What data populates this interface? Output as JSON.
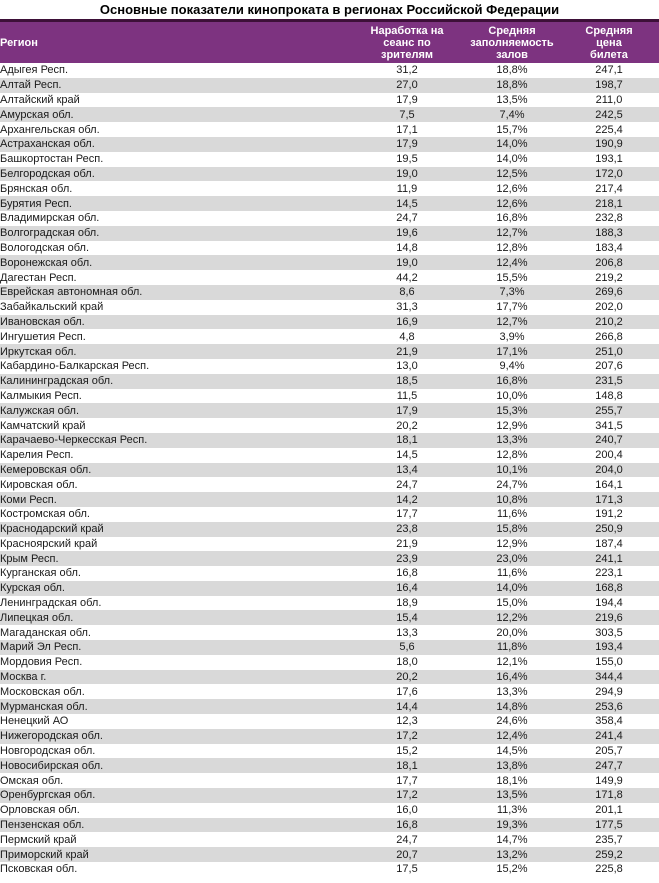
{
  "title": "Основные показатели кинопроката в регионах Российской Федерации",
  "colors": {
    "header_bg": "#7D3380",
    "header_top_border": "#3D1038",
    "stripe": "#D9D9D9",
    "header_text": "#FFFFFF",
    "body_text": "#1A1A1A"
  },
  "chart_data": {
    "type": "table",
    "title": "Основные показатели кинопроката в регионах Российской Федерации",
    "columns": [
      "Регион",
      "Наработка на\nсеанс по зрителям",
      "Средняя\nзаполняемость\nзалов",
      "Средняя цена\nбилета"
    ],
    "rows": [
      [
        "Адыгея Респ.",
        "31,2",
        "18,8%",
        "247,1"
      ],
      [
        "Алтай Респ.",
        "27,0",
        "18,8%",
        "198,7"
      ],
      [
        "Алтайский край",
        "17,9",
        "13,5%",
        "211,0"
      ],
      [
        "Амурская обл.",
        "7,5",
        "7,4%",
        "242,5"
      ],
      [
        "Архангельская обл.",
        "17,1",
        "15,7%",
        "225,4"
      ],
      [
        "Астраханская обл.",
        "17,9",
        "14,0%",
        "190,9"
      ],
      [
        "Башкортостан Респ.",
        "19,5",
        "14,0%",
        "193,1"
      ],
      [
        "Белгородская обл.",
        "19,0",
        "12,5%",
        "172,0"
      ],
      [
        "Брянская обл.",
        "11,9",
        "12,6%",
        "217,4"
      ],
      [
        "Бурятия Респ.",
        "14,5",
        "12,6%",
        "218,1"
      ],
      [
        "Владимирская обл.",
        "24,7",
        "16,8%",
        "232,8"
      ],
      [
        "Волгоградская обл.",
        "19,6",
        "12,7%",
        "188,3"
      ],
      [
        "Вологодская обл.",
        "14,8",
        "12,8%",
        "183,4"
      ],
      [
        "Воронежская обл.",
        "19,0",
        "12,4%",
        "206,8"
      ],
      [
        "Дагестан Респ.",
        "44,2",
        "15,5%",
        "219,2"
      ],
      [
        "Еврейская автономная обл.",
        "8,6",
        "7,3%",
        "269,6"
      ],
      [
        "Забайкальский край",
        "31,3",
        "17,7%",
        "202,0"
      ],
      [
        "Ивановская обл.",
        "16,9",
        "12,7%",
        "210,2"
      ],
      [
        "Ингушетия Респ.",
        "4,8",
        "3,9%",
        "266,8"
      ],
      [
        "Иркутская обл.",
        "21,9",
        "17,1%",
        "251,0"
      ],
      [
        "Кабардино-Балкарская Респ.",
        "13,0",
        "9,4%",
        "207,6"
      ],
      [
        "Калининградская обл.",
        "18,5",
        "16,8%",
        "231,5"
      ],
      [
        "Калмыкия Респ.",
        "11,5",
        "10,0%",
        "148,8"
      ],
      [
        "Калужская обл.",
        "17,9",
        "15,3%",
        "255,7"
      ],
      [
        "Камчатский край",
        "20,2",
        "12,9%",
        "341,5"
      ],
      [
        "Карачаево-Черкесская Респ.",
        "18,1",
        "13,3%",
        "240,7"
      ],
      [
        "Карелия Респ.",
        "14,5",
        "12,8%",
        "200,4"
      ],
      [
        "Кемеровская обл.",
        "13,4",
        "10,1%",
        "204,0"
      ],
      [
        "Кировская обл.",
        "24,7",
        "24,7%",
        "164,1"
      ],
      [
        "Коми Респ.",
        "14,2",
        "10,8%",
        "171,3"
      ],
      [
        "Костромская обл.",
        "17,7",
        "11,6%",
        "191,2"
      ],
      [
        "Краснодарский край",
        "23,8",
        "15,8%",
        "250,9"
      ],
      [
        "Красноярский край",
        "21,9",
        "12,9%",
        "187,4"
      ],
      [
        "Крым Респ.",
        "23,9",
        "23,0%",
        "241,1"
      ],
      [
        "Курганская обл.",
        "16,8",
        "11,6%",
        "223,1"
      ],
      [
        "Курская обл.",
        "16,4",
        "14,0%",
        "168,8"
      ],
      [
        "Ленинградская обл.",
        "18,9",
        "15,0%",
        "194,4"
      ],
      [
        "Липецкая обл.",
        "15,4",
        "12,2%",
        "219,6"
      ],
      [
        "Магаданская обл.",
        "13,3",
        "20,0%",
        "303,5"
      ],
      [
        "Марий Эл Респ.",
        "5,6",
        "11,8%",
        "193,4"
      ],
      [
        "Мордовия Респ.",
        "18,0",
        "12,1%",
        "155,0"
      ],
      [
        "Москва г.",
        "20,2",
        "16,4%",
        "344,4"
      ],
      [
        "Московская обл.",
        "17,6",
        "13,3%",
        "294,9"
      ],
      [
        "Мурманская обл.",
        "14,4",
        "14,8%",
        "253,6"
      ],
      [
        "Ненецкий АО",
        "12,3",
        "24,6%",
        "358,4"
      ],
      [
        "Нижегородская обл.",
        "17,2",
        "12,4%",
        "241,4"
      ],
      [
        "Новгородская обл.",
        "15,2",
        "14,5%",
        "205,7"
      ],
      [
        "Новосибирская обл.",
        "18,1",
        "13,8%",
        "247,7"
      ],
      [
        "Омская обл.",
        "17,7",
        "18,1%",
        "149,9"
      ],
      [
        "Оренбургская обл.",
        "17,2",
        "13,5%",
        "171,8"
      ],
      [
        "Орловская обл.",
        "16,0",
        "11,3%",
        "201,1"
      ],
      [
        "Пензенская обл.",
        "16,8",
        "19,3%",
        "177,5"
      ],
      [
        "Пермский край",
        "24,7",
        "14,7%",
        "235,7"
      ],
      [
        "Приморский край",
        "20,7",
        "13,2%",
        "259,2"
      ],
      [
        "Псковская обл.",
        "17,5",
        "15,2%",
        "225,8"
      ]
    ]
  }
}
